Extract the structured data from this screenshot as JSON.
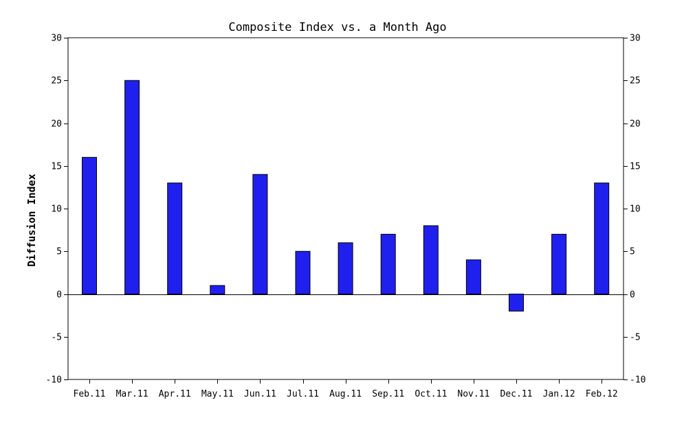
{
  "chart_data": {
    "type": "bar",
    "title": "Composite Index vs. a Month Ago",
    "xlabel": "",
    "ylabel": "Diffusion Index",
    "categories": [
      "Feb.11",
      "Mar.11",
      "Apr.11",
      "May.11",
      "Jun.11",
      "Jul.11",
      "Aug.11",
      "Sep.11",
      "Oct.11",
      "Nov.11",
      "Dec.11",
      "Jan.12",
      "Feb.12"
    ],
    "values": [
      16,
      25,
      13,
      1,
      14,
      5,
      6,
      7,
      8,
      4,
      -2,
      7,
      13
    ],
    "ylim": [
      -10,
      30
    ],
    "yticks": [
      -10,
      -5,
      0,
      5,
      10,
      15,
      20,
      25,
      30
    ],
    "ytick_labels": [
      "-10",
      "-5",
      "0",
      "5",
      "10",
      "15",
      "20",
      "25",
      "30"
    ],
    "secondary_y_axis": true,
    "grid": false,
    "legend": "none",
    "colors": {
      "bar_fill": "#2020ee",
      "bar_stroke": "#000000",
      "axis": "#000000",
      "background": "#ffffff"
    }
  }
}
